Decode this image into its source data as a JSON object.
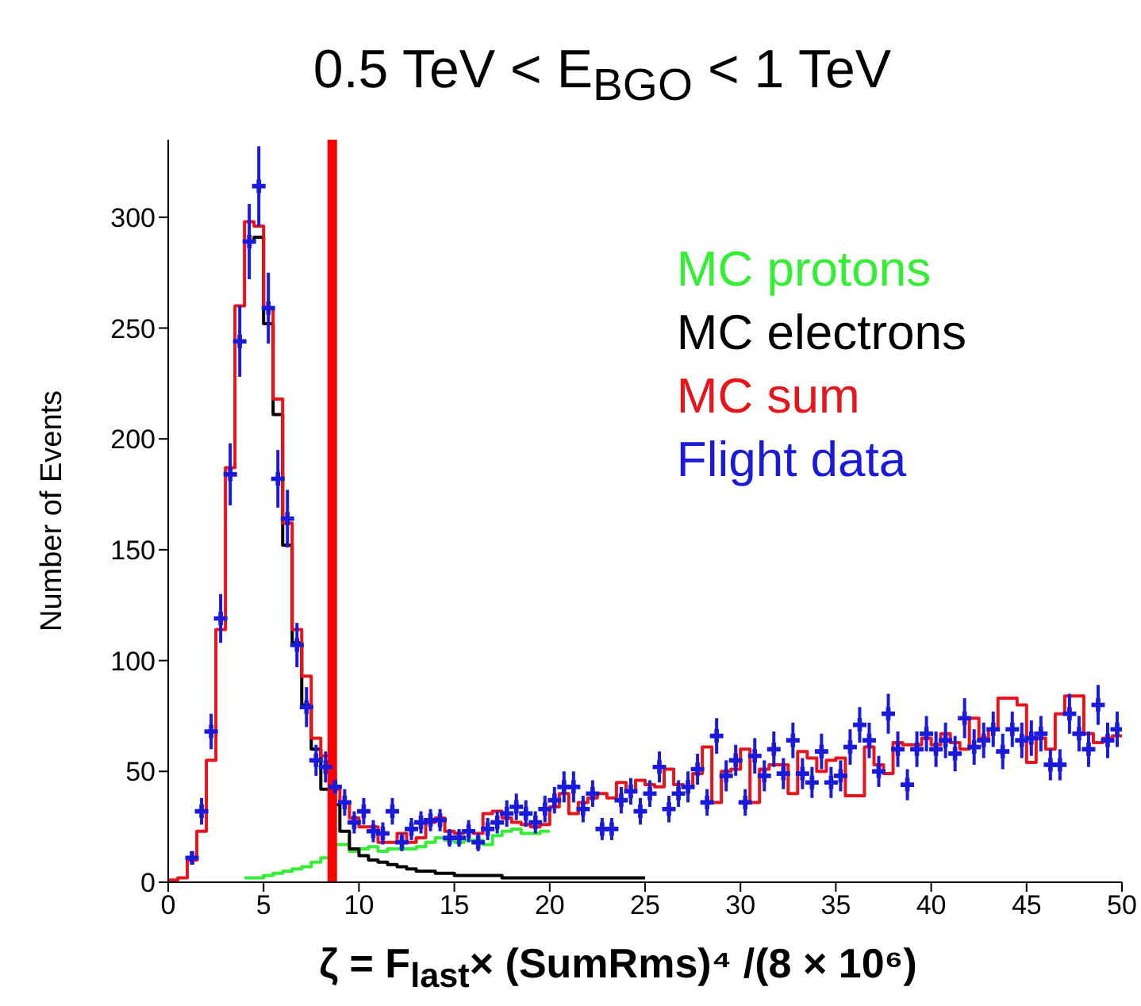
{
  "chart_data": {
    "type": "histogram",
    "title": "0.5 TeV < E$_{BGO}$ < 1 TeV",
    "xlabel": "ζ = F$_{last}$× (SumRms)⁴ /(8 × 10⁶)",
    "ylabel": "Number of Events",
    "bins": [
      0,
      0.5,
      1,
      1.5,
      2,
      2.5,
      3,
      3.5,
      4,
      4.5,
      5,
      5.5,
      6,
      6.5,
      7,
      7.5,
      8,
      8.5,
      9,
      9.5,
      10,
      10.5,
      11,
      11.5,
      12,
      12.5,
      13,
      13.5,
      14,
      14.5,
      15,
      15.5,
      16,
      16.5,
      17,
      17.5,
      18,
      18.5,
      19,
      19.5,
      20,
      20.5,
      21,
      21.5,
      22,
      22.5,
      23,
      23.5,
      24,
      24.5,
      25,
      25.5,
      26,
      26.5,
      27,
      27.5,
      28,
      28.5,
      29,
      29.5,
      30,
      30.5,
      31,
      31.5,
      32,
      32.5,
      33,
      33.5,
      34,
      34.5,
      35,
      35.5,
      36,
      36.5,
      37,
      37.5,
      38,
      38.5,
      39,
      39.5,
      40,
      40.5,
      41,
      41.5,
      42,
      42.5,
      43,
      43.5,
      44,
      44.5,
      45,
      45.5,
      46,
      46.5,
      47,
      47.5,
      48,
      48.5,
      49,
      49.5,
      50
    ],
    "series": [
      {
        "name": "MC protons",
        "color": "#33ee33",
        "bins": [
          4,
          4.5,
          5,
          5.5,
          6,
          6.5,
          7,
          7.5,
          8,
          8.5,
          9,
          9.5,
          10,
          10.5,
          11,
          11.5,
          12,
          12.5,
          13,
          13.5,
          14,
          14.5,
          15,
          15.5,
          16,
          16.5,
          17,
          17.5,
          18,
          18.5,
          19,
          19.5,
          20
        ],
        "values": [
          2,
          2,
          3,
          4,
          5,
          6,
          7,
          9,
          11,
          17,
          17,
          14,
          15,
          16,
          14,
          15,
          15,
          15,
          16,
          18,
          20,
          19,
          18,
          19,
          19,
          17,
          21,
          23,
          24,
          22,
          22,
          23
        ]
      },
      {
        "name": "MC electrons",
        "color": "#000000",
        "bins": [
          4,
          4.5,
          5,
          5.5,
          6,
          6.5,
          7,
          7.5,
          8,
          8.5,
          9,
          9.5,
          10,
          10.5,
          11,
          11.5,
          12,
          12.5,
          13,
          13.5,
          14,
          14.5,
          15,
          15.5,
          16,
          16.5,
          17,
          17.5,
          18,
          18.5,
          19,
          19.5,
          20,
          20.5,
          21,
          21.5,
          22,
          22.5,
          23,
          23.5,
          24,
          24.5,
          25
        ],
        "values": [
          289,
          291,
          252,
          211,
          152,
          108,
          80,
          60,
          42,
          35,
          23,
          15,
          12,
          10,
          9,
          8,
          7,
          6,
          5,
          5,
          4,
          4,
          3,
          3,
          3,
          3,
          3,
          2,
          2,
          2,
          2,
          2,
          2,
          2,
          2,
          2,
          2,
          2,
          2,
          2,
          2,
          2
        ]
      },
      {
        "name": "MC sum",
        "color": "#e8141b",
        "values": [
          1,
          2,
          10,
          23,
          55,
          114,
          187,
          260,
          298,
          296,
          259,
          218,
          162,
          114,
          93,
          65,
          57,
          42,
          36,
          29,
          25,
          25,
          18,
          18,
          22,
          18,
          20,
          27,
          29,
          23,
          22,
          23,
          22,
          31,
          32,
          29,
          27,
          26,
          25,
          26,
          34,
          40,
          31,
          36,
          38,
          40,
          38,
          45,
          41,
          46,
          44,
          43,
          51,
          44,
          43,
          49,
          61,
          36,
          50,
          51,
          60,
          36,
          51,
          53,
          53,
          40,
          59,
          56,
          50,
          55,
          56,
          39,
          39,
          61,
          53,
          49,
          63,
          62,
          62,
          65,
          62,
          67,
          63,
          60,
          74,
          65,
          69,
          83,
          83,
          80,
          54,
          65,
          60,
          76,
          84,
          84,
          67,
          63,
          65,
          66
        ]
      },
      {
        "name": "Flight data",
        "color": "#1a1adb",
        "type": "scatter",
        "marker": "cross",
        "x": [
          1.25,
          1.75,
          2.25,
          2.75,
          3.25,
          3.75,
          4.25,
          4.75,
          5.25,
          5.75,
          6.25,
          6.75,
          7.25,
          7.75,
          8.25,
          8.75,
          9.25,
          9.75,
          10.25,
          10.75,
          11.25,
          11.75,
          12.25,
          12.75,
          13.25,
          13.75,
          14.25,
          14.75,
          15.25,
          15.75,
          16.25,
          16.75,
          17.25,
          17.75,
          18.25,
          18.75,
          19.25,
          19.75,
          20.25,
          20.75,
          21.25,
          21.75,
          22.25,
          22.75,
          23.25,
          23.75,
          24.25,
          24.75,
          25.25,
          25.75,
          26.25,
          26.75,
          27.25,
          27.75,
          28.25,
          28.75,
          29.25,
          29.75,
          30.25,
          30.75,
          31.25,
          31.75,
          32.25,
          32.75,
          33.25,
          33.75,
          34.25,
          34.75,
          35.25,
          35.75,
          36.25,
          36.75,
          37.25,
          37.75,
          38.25,
          38.75,
          39.25,
          39.75,
          40.25,
          40.75,
          41.25,
          41.75,
          42.25,
          42.75,
          43.25,
          43.75,
          44.25,
          44.75,
          45.25,
          45.75,
          46.25,
          46.75,
          47.25,
          47.75,
          48.25,
          48.75,
          49.25,
          49.75
        ],
        "values": [
          11,
          32,
          68,
          119,
          184,
          244,
          289,
          314,
          259,
          182,
          164,
          107,
          79,
          55,
          52,
          43,
          36,
          27,
          32,
          23,
          22,
          32,
          18,
          24,
          27,
          28,
          28,
          20,
          20,
          23,
          18,
          24,
          27,
          31,
          34,
          31,
          27,
          33,
          37,
          43,
          43,
          33,
          40,
          24,
          24,
          37,
          41,
          32,
          40,
          52,
          33,
          40,
          43,
          51,
          36,
          66,
          48,
          55,
          36,
          57,
          48,
          60,
          49,
          64,
          49,
          45,
          59,
          45,
          48,
          61,
          71,
          64,
          50,
          76,
          60,
          44,
          60,
          67,
          60,
          64,
          58,
          74,
          61,
          64,
          69,
          59,
          69,
          64,
          65,
          67,
          53,
          53,
          76,
          67,
          60,
          80,
          64,
          69
        ],
        "errors": [
          3,
          6,
          8,
          11,
          14,
          16,
          17,
          18,
          16,
          13,
          13,
          10,
          9,
          7,
          7,
          7,
          6,
          5,
          6,
          5,
          5,
          6,
          4,
          5,
          5,
          5,
          5,
          4,
          4,
          5,
          4,
          5,
          5,
          6,
          6,
          6,
          5,
          6,
          6,
          7,
          7,
          6,
          6,
          5,
          5,
          6,
          6,
          6,
          6,
          7,
          6,
          6,
          7,
          7,
          6,
          8,
          7,
          7,
          6,
          8,
          7,
          8,
          7,
          8,
          7,
          7,
          8,
          7,
          7,
          8,
          8,
          8,
          7,
          9,
          8,
          7,
          8,
          8,
          8,
          8,
          8,
          9,
          8,
          8,
          8,
          8,
          8,
          8,
          8,
          8,
          7,
          7,
          9,
          8,
          8,
          9,
          8,
          8
        ]
      }
    ],
    "xlim": [
      0,
      50
    ],
    "ylim": [
      0,
      335
    ],
    "xticks": [
      0,
      5,
      10,
      15,
      20,
      25,
      30,
      35,
      40,
      45,
      50
    ],
    "yticks": [
      0,
      50,
      100,
      150,
      200,
      250,
      300
    ],
    "ref_lines": [
      {
        "axis": "x",
        "value": 8.6,
        "color": "#ff0000"
      }
    ],
    "legend": "top right"
  }
}
